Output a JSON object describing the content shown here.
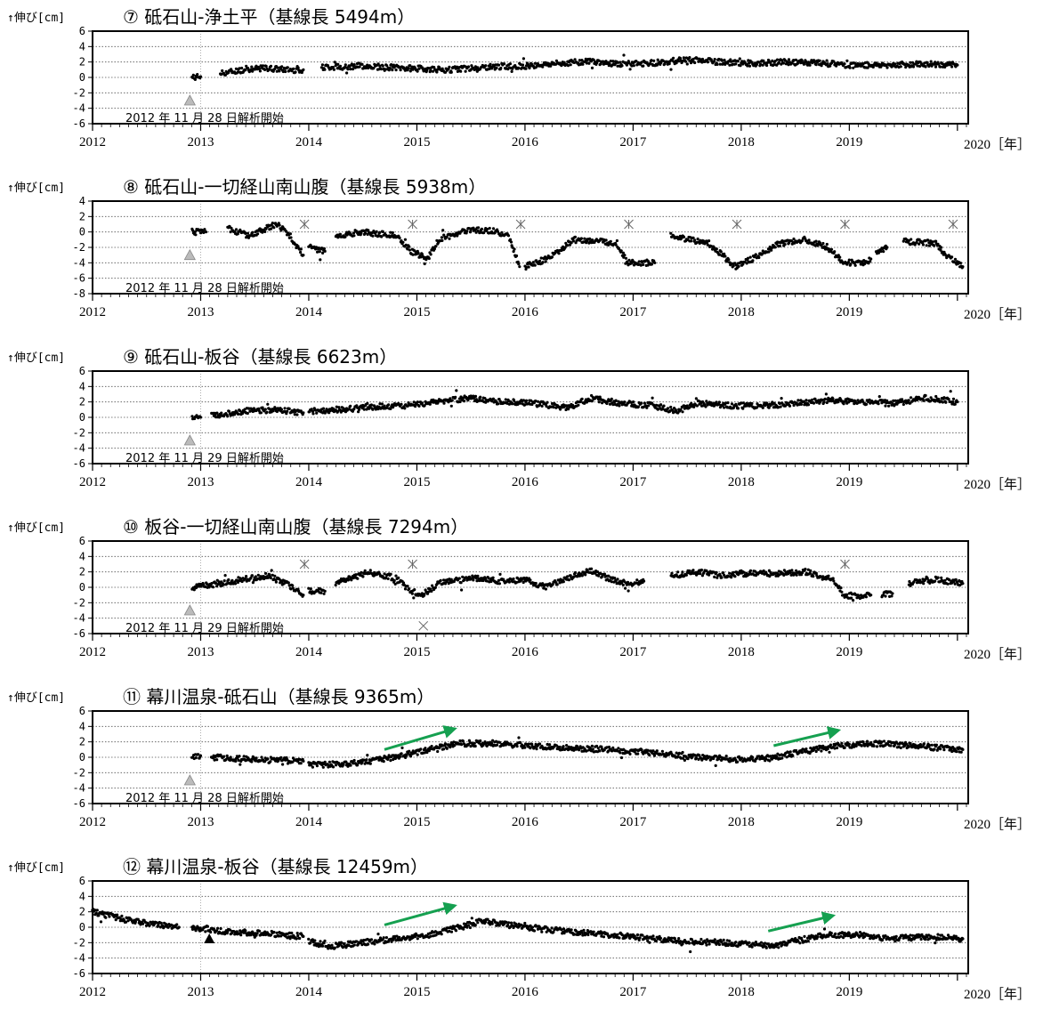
{
  "y_label": "↑伸び[cm]",
  "x_unit": "2020［年］",
  "colors": {
    "points": "#000000",
    "grid": "#555555",
    "start_marker": "#bbbbbb",
    "event_marker": "#000000",
    "trend_arrow": "#15a050",
    "outlier": "#666666"
  },
  "chart_data": [
    {
      "type": "scatter",
      "title": "⑦ 砥石山-浄土平（基線長 5494m）",
      "annotation": "2012 年 11 月 28 日解析開始",
      "ylim": [
        -6,
        6
      ],
      "yticks": [
        6,
        4,
        2,
        0,
        -2,
        -4,
        -6
      ],
      "xlim": [
        2012,
        2020.1
      ],
      "xticks": [
        "2012",
        "2013",
        "2014",
        "2015",
        "2016",
        "2017",
        "2018",
        "2019"
      ],
      "grid": true,
      "start_marker": {
        "x": 2012.9,
        "y": -3
      },
      "segments": [
        {
          "x": [
            2012.92,
            2013.0
          ],
          "y": [
            0.0,
            0.1
          ]
        },
        {
          "x": [
            2013.18,
            2013.4,
            2013.6,
            2013.8,
            2013.95
          ],
          "y": [
            0.5,
            1.0,
            1.2,
            1.0,
            1.0
          ]
        },
        {
          "x": [
            2014.12,
            2014.5,
            2014.9,
            2015.3,
            2015.7,
            2016.0,
            2016.3,
            2016.6,
            2016.9,
            2017.2,
            2017.5,
            2017.8,
            2018.1,
            2018.4,
            2018.7,
            2019.0,
            2019.3,
            2019.6,
            2019.9,
            2020.0
          ],
          "y": [
            1.3,
            1.5,
            1.2,
            1.0,
            1.4,
            1.5,
            1.8,
            2.1,
            1.7,
            1.9,
            2.3,
            2.0,
            1.8,
            2.0,
            1.9,
            1.6,
            1.6,
            1.7,
            1.7,
            1.6
          ]
        }
      ],
      "events": [],
      "trend_arrows": []
    },
    {
      "type": "scatter",
      "title": "⑧ 砥石山-一切経山南山腹（基線長 5938m）",
      "annotation": "2012 年 11 月 28 日解析開始",
      "ylim": [
        -8,
        4
      ],
      "yticks": [
        4,
        2,
        0,
        -2,
        -4,
        -6,
        -8
      ],
      "xlim": [
        2012,
        2020.1
      ],
      "xticks": [
        "2012",
        "2013",
        "2014",
        "2015",
        "2016",
        "2017",
        "2018",
        "2019"
      ],
      "grid": true,
      "start_marker": {
        "x": 2012.9,
        "y": -3
      },
      "segments": [
        {
          "x": [
            2012.92,
            2013.05
          ],
          "y": [
            0.0,
            0.0
          ]
        },
        {
          "x": [
            2013.25,
            2013.45,
            2013.7,
            2013.8,
            2013.9,
            2013.95
          ],
          "y": [
            0.5,
            -0.5,
            1.0,
            0.0,
            -2.0,
            -3.0
          ]
        },
        {
          "x": [
            2014.0,
            2014.15
          ],
          "y": [
            -2.0,
            -2.5
          ]
        },
        {
          "x": [
            2014.25,
            2014.5,
            2014.8,
            2014.95,
            2015.1,
            2015.2,
            2015.45,
            2015.7,
            2015.85,
            2015.95
          ],
          "y": [
            -0.5,
            0.0,
            -0.5,
            -2.5,
            -3.5,
            -1.0,
            0.2,
            0.2,
            -0.5,
            -4.5
          ]
        },
        {
          "x": [
            2016.0,
            2016.2,
            2016.45,
            2016.7,
            2016.85,
            2016.95,
            2017.15,
            2017.2
          ],
          "y": [
            -4.5,
            -3.5,
            -1.0,
            -1.2,
            -1.5,
            -4.0,
            -4.0,
            -4.0
          ]
        },
        {
          "x": [
            2017.35,
            2017.7,
            2017.95,
            2018.1,
            2018.35,
            2018.6,
            2018.8,
            2018.95,
            2019.15,
            2019.2
          ],
          "y": [
            -0.5,
            -1.5,
            -4.5,
            -3.5,
            -1.5,
            -1.0,
            -2.0,
            -4.0,
            -4.0,
            -3.5
          ]
        },
        {
          "x": [
            2019.25,
            2019.35
          ],
          "y": [
            -2.5,
            -2.0
          ]
        },
        {
          "x": [
            2019.5,
            2019.8,
            2019.9,
            2020.05
          ],
          "y": [
            -1.2,
            -1.5,
            -3.0,
            -4.5
          ]
        }
      ],
      "events": [
        {
          "x": 2013.96,
          "y": 1
        },
        {
          "x": 2014.96,
          "y": 1
        },
        {
          "x": 2015.96,
          "y": 1
        },
        {
          "x": 2016.96,
          "y": 1
        },
        {
          "x": 2017.96,
          "y": 1
        },
        {
          "x": 2018.96,
          "y": 1
        },
        {
          "x": 2019.96,
          "y": 1
        }
      ],
      "trend_arrows": []
    },
    {
      "type": "scatter",
      "title": "⑨ 砥石山-板谷（基線長 6623m）",
      "annotation": "2012 年 11 月 29 日解析開始",
      "ylim": [
        -6,
        6
      ],
      "yticks": [
        6,
        4,
        2,
        0,
        -2,
        -4,
        -6
      ],
      "xlim": [
        2012,
        2020.1
      ],
      "xticks": [
        "2012",
        "2013",
        "2014",
        "2015",
        "2016",
        "2017",
        "2018",
        "2019"
      ],
      "grid": true,
      "start_marker": {
        "x": 2012.9,
        "y": -3
      },
      "segments": [
        {
          "x": [
            2012.92,
            2013.0
          ],
          "y": [
            0.0,
            0.0
          ]
        },
        {
          "x": [
            2013.1,
            2013.4,
            2013.7,
            2013.95
          ],
          "y": [
            0.2,
            0.8,
            1.0,
            0.6
          ]
        },
        {
          "x": [
            2014.0,
            2014.3,
            2014.6,
            2014.9,
            2015.2,
            2015.5,
            2015.8,
            2016.1,
            2016.4,
            2016.6,
            2016.9,
            2017.2,
            2017.4,
            2017.6,
            2017.9,
            2018.2,
            2018.5,
            2018.8,
            2019.1,
            2019.4,
            2019.7,
            2020.0
          ],
          "y": [
            0.8,
            1.0,
            1.4,
            1.5,
            2.0,
            2.5,
            2.0,
            1.8,
            1.2,
            2.5,
            1.8,
            1.5,
            0.8,
            1.8,
            1.5,
            1.5,
            1.8,
            2.2,
            2.0,
            1.8,
            2.5,
            2.0
          ]
        }
      ],
      "events": [],
      "trend_arrows": []
    },
    {
      "type": "scatter",
      "title": "⑩ 板谷-一切経山南山腹（基線長 7294m）",
      "annotation": "2012 年 11 月 29 日解析開始",
      "ylim": [
        -6,
        6
      ],
      "yticks": [
        6,
        4,
        2,
        0,
        -2,
        -4,
        -6
      ],
      "xlim": [
        2012,
        2020.1
      ],
      "xticks": [
        "2012",
        "2013",
        "2014",
        "2015",
        "2016",
        "2017",
        "2018",
        "2019"
      ],
      "grid": true,
      "start_marker": {
        "x": 2012.9,
        "y": -3
      },
      "segments": [
        {
          "x": [
            2012.92,
            2013.2,
            2013.45,
            2013.65,
            2013.85,
            2013.95
          ],
          "y": [
            0.0,
            0.5,
            1.2,
            1.5,
            0.0,
            -1.0
          ]
        },
        {
          "x": [
            2014.0,
            2014.15
          ],
          "y": [
            -0.5,
            -0.5
          ]
        },
        {
          "x": [
            2014.25,
            2014.55,
            2014.8,
            2014.95,
            2015.05,
            2015.2,
            2015.5,
            2015.8,
            2016.0,
            2016.2,
            2016.35,
            2016.6,
            2016.8,
            2016.95,
            2017.1
          ],
          "y": [
            0.5,
            2.0,
            1.2,
            -0.5,
            -1.0,
            0.5,
            1.2,
            0.8,
            1.0,
            0.0,
            1.0,
            2.2,
            1.0,
            0.5,
            0.8
          ]
        },
        {
          "x": [
            2017.35,
            2017.6,
            2017.8,
            2018.0,
            2018.3,
            2018.6,
            2018.85,
            2018.95,
            2019.1,
            2019.2
          ],
          "y": [
            1.5,
            2.0,
            1.5,
            1.8,
            1.8,
            2.0,
            1.0,
            -1.0,
            -1.2,
            -1.0
          ]
        },
        {
          "x": [
            2019.3,
            2019.4
          ],
          "y": [
            -1.0,
            -0.8
          ]
        },
        {
          "x": [
            2019.55,
            2019.8,
            2020.05
          ],
          "y": [
            0.5,
            1.0,
            0.5
          ]
        }
      ],
      "events": [
        {
          "x": 2013.96,
          "y": 3
        },
        {
          "x": 2014.96,
          "y": 3
        },
        {
          "x": 2018.96,
          "y": 3
        }
      ],
      "outliers": [
        {
          "x": 2015.06,
          "y": -5
        }
      ],
      "trend_arrows": []
    },
    {
      "type": "scatter",
      "title": "⑪ 幕川温泉-砥石山（基線長 9365m）",
      "annotation": "2012 年 11 月 28 日解析開始",
      "ylim": [
        -6,
        6
      ],
      "yticks": [
        6,
        4,
        2,
        0,
        -2,
        -4,
        -6
      ],
      "xlim": [
        2012,
        2020.1
      ],
      "xticks": [
        "2012",
        "2013",
        "2014",
        "2015",
        "2016",
        "2017",
        "2018",
        "2019"
      ],
      "grid": true,
      "start_marker": {
        "x": 2012.9,
        "y": -3
      },
      "segments": [
        {
          "x": [
            2012.92,
            2013.0
          ],
          "y": [
            0.2,
            0.2
          ]
        },
        {
          "x": [
            2013.1,
            2013.5,
            2013.95
          ],
          "y": [
            0.0,
            -0.3,
            -0.5
          ]
        },
        {
          "x": [
            2014.0,
            2014.4,
            2014.8,
            2015.1,
            2015.4,
            2015.7,
            2016.0,
            2016.4,
            2016.8,
            2017.2,
            2017.6,
            2018.0,
            2018.3,
            2018.6,
            2018.9,
            2019.2,
            2019.6,
            2020.05
          ],
          "y": [
            -1.0,
            -0.8,
            0.0,
            1.0,
            1.8,
            1.8,
            1.5,
            1.2,
            1.0,
            0.5,
            0.0,
            -0.3,
            0.0,
            0.8,
            1.5,
            1.8,
            1.5,
            1.0
          ]
        }
      ],
      "events": [],
      "trend_arrows": [
        {
          "x1": 2014.7,
          "y1": 1.0,
          "x2": 2015.35,
          "y2": 3.7
        },
        {
          "x1": 2018.3,
          "y1": 1.5,
          "x2": 2018.9,
          "y2": 3.5
        }
      ]
    },
    {
      "type": "scatter",
      "title": "⑫ 幕川温泉-板谷（基線長 12459m）",
      "annotation": "",
      "ylim": [
        -6,
        6
      ],
      "yticks": [
        6,
        4,
        2,
        0,
        -2,
        -4,
        -6
      ],
      "xlim": [
        2012,
        2020.1
      ],
      "xticks": [
        "2012",
        "2013",
        "2014",
        "2015",
        "2016",
        "2017",
        "2018",
        "2019"
      ],
      "grid": true,
      "event_triangle": {
        "x": 2013.08,
        "y": -1.5
      },
      "segments": [
        {
          "x": [
            2012.0,
            2012.3,
            2012.6,
            2012.8
          ],
          "y": [
            2.0,
            1.0,
            0.3,
            0.0
          ]
        },
        {
          "x": [
            2012.92,
            2013.2,
            2013.6,
            2013.95
          ],
          "y": [
            0.0,
            -0.5,
            -0.8,
            -1.2
          ]
        },
        {
          "x": [
            2014.0,
            2014.2,
            2014.5,
            2014.8,
            2015.1,
            2015.4,
            2015.6,
            2015.9,
            2016.2,
            2016.6,
            2017.0,
            2017.4,
            2017.8,
            2018.1,
            2018.3,
            2018.5,
            2018.8,
            2019.1,
            2019.4,
            2019.7,
            2020.05
          ],
          "y": [
            -1.8,
            -2.5,
            -2.0,
            -1.5,
            -1.0,
            0.0,
            0.8,
            0.2,
            -0.3,
            -0.8,
            -1.2,
            -1.8,
            -2.0,
            -2.2,
            -2.5,
            -1.8,
            -1.0,
            -1.0,
            -1.5,
            -1.2,
            -1.5
          ]
        }
      ],
      "events": [],
      "trend_arrows": [
        {
          "x1": 2014.7,
          "y1": 0.3,
          "x2": 2015.35,
          "y2": 2.8
        },
        {
          "x1": 2018.25,
          "y1": -0.5,
          "x2": 2018.85,
          "y2": 1.5
        }
      ]
    }
  ]
}
